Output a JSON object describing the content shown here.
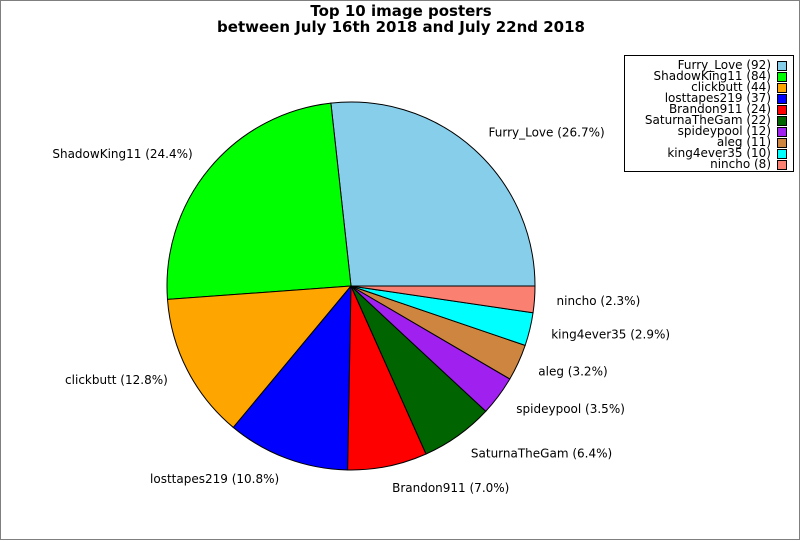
{
  "chart_data": {
    "type": "pie",
    "title": "Top 10 image posters",
    "subtitle": "between July 16th 2018 and July 22nd 2018",
    "legend_position": "top-right",
    "slices": [
      {
        "name": "Furry_Love",
        "value": 92,
        "percent_label": "Furry_Love (26.7%)",
        "legend_label": "Furry_Love (92)",
        "color": "#87ceeb"
      },
      {
        "name": "ShadowKing11",
        "value": 84,
        "percent_label": "ShadowKing11 (24.4%)",
        "legend_label": "ShadowKing11 (84)",
        "color": "#00ff00"
      },
      {
        "name": "clickbutt",
        "value": 44,
        "percent_label": "clickbutt (12.8%)",
        "legend_label": "clickbutt (44)",
        "color": "#ffa500"
      },
      {
        "name": "losttapes219",
        "value": 37,
        "percent_label": "losttapes219 (10.8%)",
        "legend_label": "losttapes219 (37)",
        "color": "#0000ff"
      },
      {
        "name": "Brandon911",
        "value": 24,
        "percent_label": "Brandon911 (7.0%)",
        "legend_label": "Brandon911 (24)",
        "color": "#ff0000"
      },
      {
        "name": "SaturnaTheGam",
        "value": 22,
        "percent_label": "SaturnaTheGam (6.4%)",
        "legend_label": "SaturnaTheGam (22)",
        "color": "#006400"
      },
      {
        "name": "spideypool",
        "value": 12,
        "percent_label": "spideypool (3.5%)",
        "legend_label": "spideypool (12)",
        "color": "#a020f0"
      },
      {
        "name": "aleg",
        "value": 11,
        "percent_label": "aleg (3.2%)",
        "legend_label": "aleg (11)",
        "color": "#cd853f"
      },
      {
        "name": "king4ever35",
        "value": 10,
        "percent_label": "king4ever35 (2.9%)",
        "legend_label": "king4ever35 (10)",
        "color": "#00ffff"
      },
      {
        "name": "nincho",
        "value": 8,
        "percent_label": "nincho (2.3%)",
        "legend_label": "nincho (8)",
        "color": "#fa8072"
      }
    ]
  }
}
